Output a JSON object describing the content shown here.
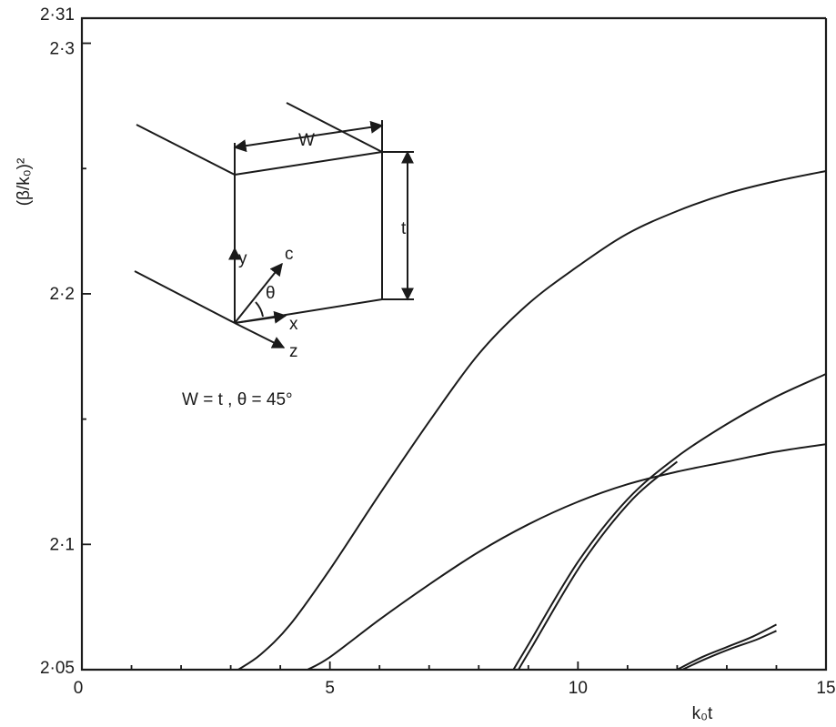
{
  "chart_data": {
    "type": "line",
    "title": "",
    "xlabel": "k₀t",
    "ylabel": "(β/k₀)²",
    "xlim": [
      0,
      15
    ],
    "ylim": [
      2.05,
      2.31
    ],
    "x_ticks": [
      0,
      5,
      10,
      15
    ],
    "x_tick_labels": [
      "0",
      "5",
      "10",
      "15"
    ],
    "y_ticks": [
      2.05,
      2.1,
      2.2,
      2.3,
      2.31
    ],
    "y_tick_labels": [
      "2·05",
      "2·1",
      "2·2",
      "2·3",
      "2·31"
    ],
    "grid": false,
    "series": [
      {
        "x": [
          3.15,
          3.6,
          4.2,
          5.0,
          6.0,
          7.0,
          8.0,
          9.0,
          10.0,
          11.0,
          12.0,
          13.0,
          14.0,
          15.0
        ],
        "y": [
          2.05,
          2.056,
          2.068,
          2.09,
          2.12,
          2.149,
          2.176,
          2.196,
          2.211,
          2.224,
          2.233,
          2.24,
          2.245,
          2.249
        ]
      },
      {
        "x": [
          4.55,
          5.0,
          6.0,
          7.0,
          8.0,
          9.0,
          10.0,
          11.0,
          12.0,
          13.0,
          14.0,
          15.0
        ],
        "y": [
          2.05,
          2.055,
          2.07,
          2.084,
          2.097,
          2.108,
          2.117,
          2.124,
          2.129,
          2.133,
          2.137,
          2.14
        ]
      },
      {
        "x": [
          8.7,
          9.0,
          10.0,
          11.0,
          12.0,
          13.0,
          14.0,
          15.0
        ],
        "y": [
          2.05,
          2.06,
          2.093,
          2.118,
          2.135,
          2.148,
          2.159,
          2.168
        ]
      },
      {
        "x": [
          8.8,
          9.1,
          10.1,
          11.1,
          12.0
        ],
        "y": [
          2.05,
          2.06,
          2.093,
          2.118,
          2.133
        ]
      },
      {
        "x": [
          12.0,
          12.5,
          13.0,
          13.5,
          14.0
        ],
        "y": [
          2.05,
          2.055,
          2.059,
          2.063,
          2.068
        ]
      },
      {
        "x": [
          12.1,
          12.6,
          13.1,
          13.6,
          14.0
        ],
        "y": [
          2.05,
          2.0545,
          2.0585,
          2.062,
          2.0655
        ]
      }
    ],
    "inset": {
      "labels": {
        "w": "W",
        "t": "t",
        "y": "y",
        "c": "c",
        "theta": "θ",
        "x": "x",
        "z": "z",
        "params": "W = t ,  θ = 45°"
      }
    }
  }
}
